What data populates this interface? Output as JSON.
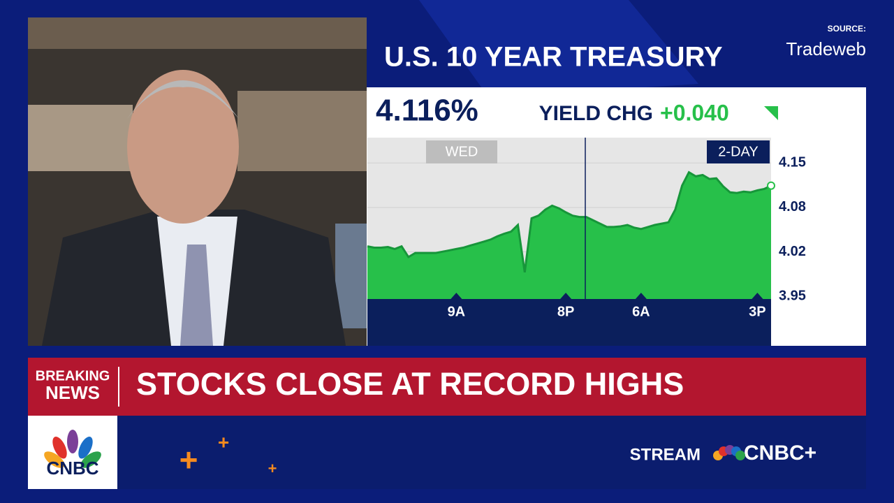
{
  "source": {
    "label": "SOURCE:",
    "name": "Tradeweb"
  },
  "chart_data": {
    "type": "area",
    "title": "U.S. 10 YEAR TREASURY",
    "headline_value": "4.116%",
    "change_label": "YIELD CHG",
    "change": "+0.040",
    "annotations": [
      "WED",
      "2-DAY"
    ],
    "color": "#27c04a",
    "line_color": "#17963a",
    "categories": [
      null,
      null,
      null,
      null,
      null,
      null,
      null,
      null,
      null,
      null,
      null,
      null,
      null,
      "9A",
      null,
      null,
      null,
      null,
      null,
      null,
      null,
      null,
      null,
      null,
      null,
      null,
      null,
      null,
      null,
      "8P",
      null,
      null,
      null,
      null,
      null,
      null,
      null,
      null,
      null,
      null,
      "6A",
      null,
      null,
      null,
      null,
      null,
      null,
      null,
      null,
      null,
      null,
      null,
      null,
      null,
      null,
      null,
      null,
      "3P",
      null,
      null
    ],
    "values": [
      4.025,
      4.023,
      4.023,
      4.024,
      4.021,
      4.025,
      4.009,
      4.015,
      4.015,
      4.015,
      4.015,
      4.017,
      4.019,
      4.021,
      4.023,
      4.026,
      4.029,
      4.032,
      4.035,
      4.04,
      4.044,
      4.047,
      4.057,
      3.986,
      4.067,
      4.071,
      4.08,
      4.086,
      4.082,
      4.076,
      4.071,
      4.069,
      4.069,
      4.064,
      4.059,
      4.054,
      4.054,
      4.055,
      4.057,
      4.053,
      4.051,
      4.054,
      4.057,
      4.059,
      4.061,
      4.08,
      4.116,
      4.136,
      4.13,
      4.132,
      4.126,
      4.127,
      4.115,
      4.106,
      4.105,
      4.107,
      4.106,
      4.109,
      4.111,
      4.116
    ],
    "ylim": [
      3.946,
      4.188
    ],
    "yticks": [
      {
        "value": 3.95,
        "label": "3.95"
      },
      {
        "value": 4.0167,
        "label": "4.02"
      },
      {
        "value": 4.0833,
        "label": "4.08"
      },
      {
        "value": 4.15,
        "label": "4.15"
      }
    ],
    "grid": true
  },
  "banner": {
    "tag_top": "BREAKING",
    "tag_bottom": "NEWS",
    "headline": "STOCKS CLOSE AT RECORD HIGHS"
  },
  "footer": {
    "logo": "CNBC",
    "stream": "STREAM",
    "brand": "CNBC+"
  }
}
